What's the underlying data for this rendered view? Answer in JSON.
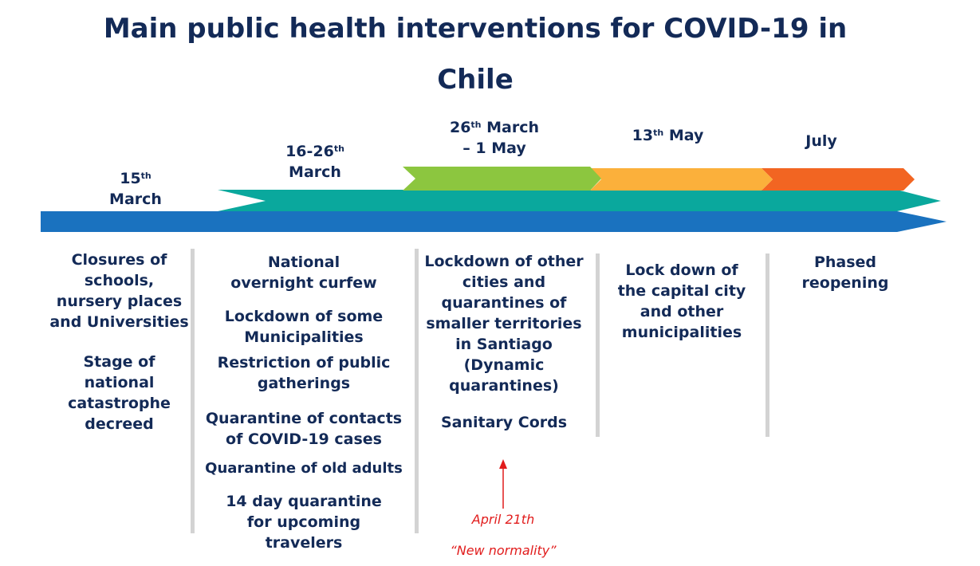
{
  "title": "Main public health interventions for COVID-19 in Chile",
  "colors": {
    "title": "#132a57",
    "blue_band": "#1a72bf",
    "teal_band": "#0aa89d",
    "green_band": "#8cc63f",
    "yellow_band": "#fbb03b",
    "orange_band": "#f26522",
    "separator": "#d3d3d3",
    "annotation": "#e11c1c"
  },
  "periods": [
    {
      "date_main": "15",
      "date_sup": "th",
      "date_rest": "March",
      "items": [
        "Closures of schools, nursery places and Universities",
        "Stage of national catastrophe decreed"
      ]
    },
    {
      "date_main": "16-26",
      "date_sup": "th",
      "date_rest": "March",
      "items": [
        "National overnight curfew",
        "Lockdown of some Municipalities",
        "Restriction of public gatherings",
        "Quarantine of contacts of COVID-19 cases",
        "Quarantine of old adults",
        "14 day quarantine for upcoming travelers"
      ]
    },
    {
      "date_main": "26",
      "date_sup": "th",
      "date_rest": "March",
      "date_line2": "– 1 May",
      "items": [
        "Lockdown of other cities and quarantines of smaller territories in Santiago (Dynamic quarantines)",
        "Sanitary Cords"
      ]
    },
    {
      "date_main": "13",
      "date_sup": "th",
      "date_rest": "May",
      "items": [
        "Lock down of the capital city and other municipalities"
      ]
    },
    {
      "date_main": "July",
      "items": [
        "Phased reopening"
      ]
    }
  ],
  "annotation": {
    "date": "April 21th",
    "label": "“New normality”"
  }
}
